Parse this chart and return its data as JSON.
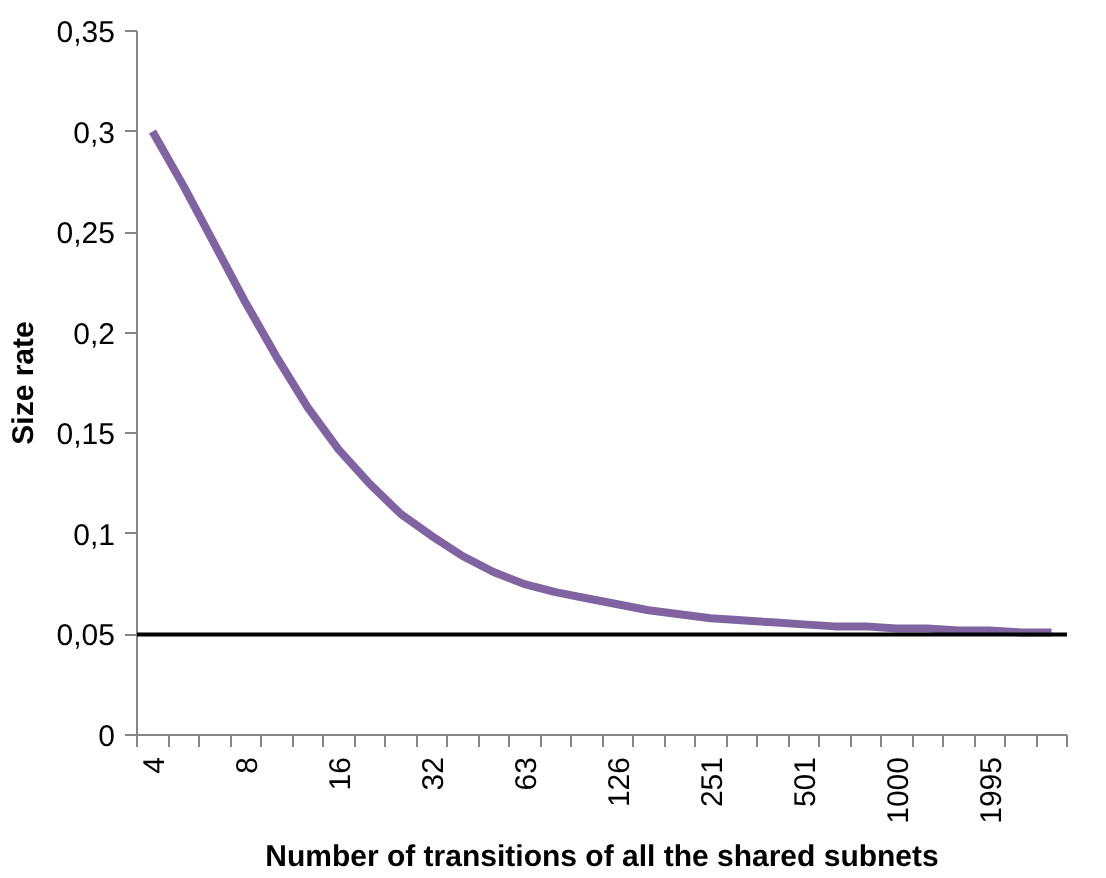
{
  "chart_data": {
    "type": "line",
    "xlabel": "Number of transitions of all the shared subnets",
    "ylabel": "Size rate",
    "categories": [
      "4",
      null,
      null,
      "8",
      null,
      null,
      "16",
      null,
      null,
      "32",
      null,
      null,
      "63",
      null,
      null,
      "126",
      null,
      null,
      "251",
      null,
      null,
      "501",
      null,
      null,
      "1000",
      null,
      null,
      "1995",
      null,
      null
    ],
    "series": [
      {
        "color": "#8064a2",
        "values": [
          0.3,
          0.273,
          0.244,
          0.215,
          0.188,
          0.163,
          0.142,
          0.125,
          0.11,
          0.099,
          0.089,
          0.081,
          0.075,
          0.071,
          0.068,
          0.065,
          0.062,
          0.06,
          0.058,
          0.057,
          0.056,
          0.055,
          0.054,
          0.054,
          0.053,
          0.053,
          0.052,
          0.052,
          0.051,
          0.051
        ]
      }
    ],
    "ylim": [
      0,
      0.35
    ],
    "yticks": [
      0,
      {
        "value": 0.05,
        "label": "0,05"
      },
      {
        "value": 0.1,
        "label": "0,1"
      },
      {
        "value": 0.15,
        "label": "0,15"
      },
      {
        "value": 0.2,
        "label": "0,2"
      },
      {
        "value": 0.25,
        "label": "0,25"
      },
      {
        "value": 0.3,
        "label": "0,3"
      },
      {
        "value": 0.35,
        "label": "0,35"
      }
    ],
    "ref_lines": [
      {
        "axis": "y",
        "value": 0.05,
        "color": "#000000"
      }
    ],
    "grid": false,
    "marker": "none",
    "line_style": "solid"
  }
}
